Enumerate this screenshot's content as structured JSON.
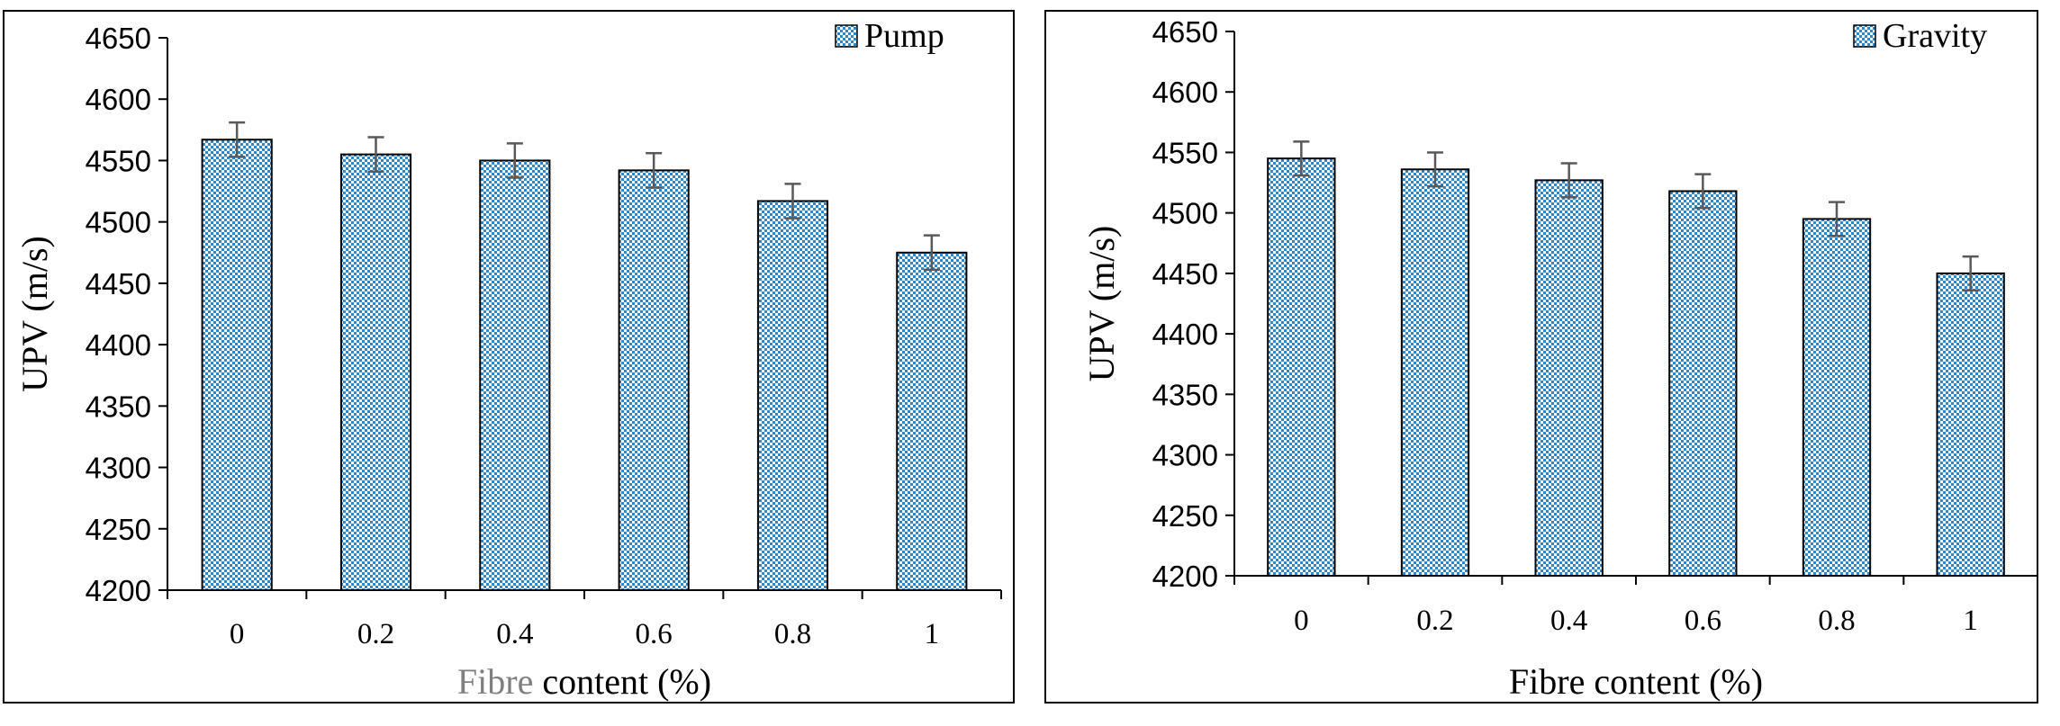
{
  "chart_data": [
    {
      "type": "bar",
      "title": "",
      "xlabel": "Fibre content (%)",
      "xlabel_parts": [
        "Fibre",
        " content (%)"
      ],
      "ylabel": "UPV (m/s)",
      "ylim": [
        4200,
        4650
      ],
      "yticks": [
        4200,
        4250,
        4300,
        4350,
        4400,
        4450,
        4500,
        4550,
        4600,
        4650
      ],
      "categories": [
        "0",
        "0.2",
        "0.4",
        "0.6",
        "0.8",
        "1"
      ],
      "series": [
        {
          "name": "Pump",
          "values": [
            4567,
            4555,
            4550,
            4542,
            4517,
            4475
          ],
          "errors": [
            14,
            14,
            14,
            14,
            14,
            14
          ]
        }
      ],
      "legend": "top-right",
      "grid": false
    },
    {
      "type": "bar",
      "title": "",
      "xlabel": "Fibre content (%)",
      "ylabel": "UPV (m/s)",
      "ylim": [
        4200,
        4650
      ],
      "yticks": [
        4200,
        4250,
        4300,
        4350,
        4400,
        4450,
        4500,
        4550,
        4600,
        4650
      ],
      "categories": [
        "0",
        "0.2",
        "0.4",
        "0.6",
        "0.8",
        "1"
      ],
      "series": [
        {
          "name": "Gravity",
          "values": [
            4545,
            4536,
            4527,
            4518,
            4495,
            4450
          ],
          "errors": [
            14,
            14,
            14,
            14,
            14,
            14
          ]
        }
      ],
      "legend": "top-right",
      "grid": false
    }
  ],
  "colors": {
    "bar_dot": "#2f86c9",
    "bar_bg": "#ffffff",
    "axis": "#000000",
    "error_bar": "#595959",
    "xlabel_first_word": "#7f7f7f"
  }
}
